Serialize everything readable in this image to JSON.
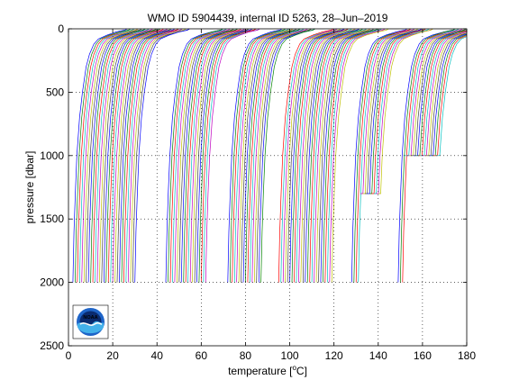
{
  "chart_data": {
    "type": "line",
    "title": "WMO ID 5904439, internal ID 5263, 28–Jun–2019",
    "xlabel_text": "temperature [",
    "xlabel_unit": "o",
    "xlabel_tail": "C]",
    "ylabel": "pressure [dbar]",
    "xlim": [
      0,
      180
    ],
    "ylim": [
      0,
      2500
    ],
    "y_reversed": true,
    "x_ticks": [
      0,
      20,
      40,
      60,
      80,
      100,
      120,
      140,
      160,
      180
    ],
    "y_ticks": [
      0,
      500,
      1000,
      1500,
      2000,
      2500
    ],
    "x_tick_labels": [
      "0",
      "20",
      "40",
      "60",
      "80",
      "100",
      "120",
      "140",
      "160",
      "180"
    ],
    "y_tick_labels": [
      "0",
      "500",
      "1000",
      "1500",
      "2000",
      "2500"
    ],
    "grid": true,
    "grid_style": "dotted",
    "profile_offset_step": 1,
    "profile_count": 165,
    "profile_base_start": 2,
    "profile_colors": [
      "#0000ff",
      "#008000",
      "#ff0000",
      "#00bfbf",
      "#bf00bf",
      "#bfbf00",
      "#404040"
    ],
    "deep_profile_max_pressure": 2000,
    "profile_shape_note": "each profile: ~28-30 at surface, drop to ~18 by 50 dbar, ~7 at 500, ~4 at 1000, ~2.5 at 2000; offset by profile index",
    "short_profile_segments": [
      {
        "from_index": 130,
        "to_index": 145,
        "max_pressure": 1300
      },
      {
        "from_index": 150,
        "to_index": 165,
        "max_pressure": 1000
      }
    ],
    "gap_regions_x": [
      [
        33,
        45
      ],
      [
        65,
        73
      ],
      [
        90,
        96
      ],
      [
        122,
        129
      ],
      [
        143,
        150
      ]
    ],
    "logo": {
      "label": "NOAA"
    }
  }
}
